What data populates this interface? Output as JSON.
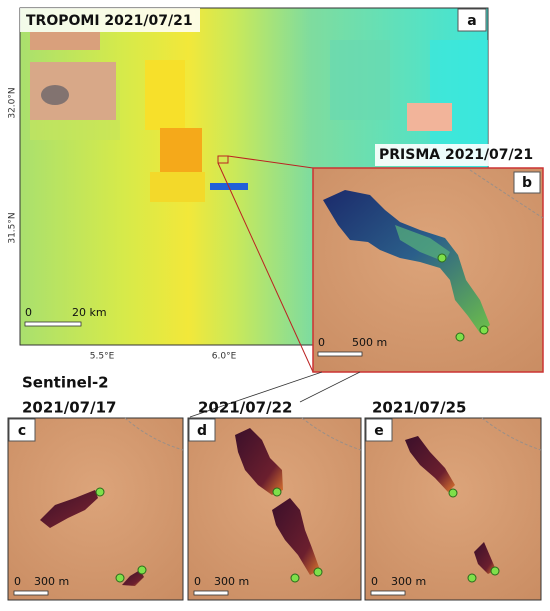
{
  "panel_a": {
    "title": "TROPOMI 2021/07/21",
    "letter": "a",
    "lat_ticks": [
      "32.0°N",
      "31.5°N"
    ],
    "lon_ticks": [
      "5.5°E",
      "6.0°E"
    ],
    "scale_zero": "0",
    "scale_length": "20 km"
  },
  "panel_b": {
    "title": "PRISMA 2021/07/21",
    "letter": "b",
    "scale_zero": "0",
    "scale_length": "500 m"
  },
  "sentinel_title": "Sentinel-2",
  "panels": [
    {
      "date": "2021/07/17",
      "letter": "c",
      "scale_zero": "0",
      "scale_length": "300 m"
    },
    {
      "date": "2021/07/22",
      "letter": "d",
      "scale_zero": "0",
      "scale_length": "300 m"
    },
    {
      "date": "2021/07/25",
      "letter": "e",
      "scale_zero": "0",
      "scale_length": "300 m"
    }
  ]
}
